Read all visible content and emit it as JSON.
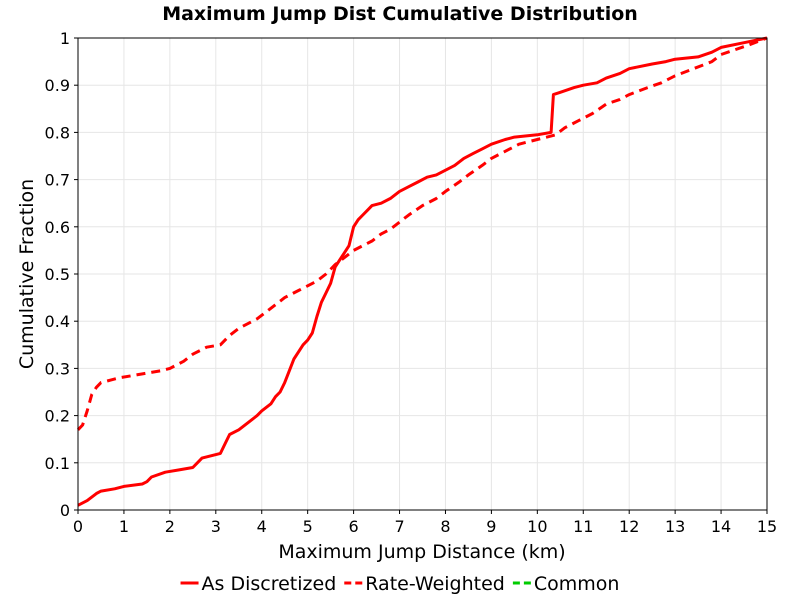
{
  "chart_data": {
    "type": "line",
    "title": "Maximum Jump Dist Cumulative Distribution",
    "xlabel": "Maximum Jump Distance (km)",
    "ylabel": "Cumulative Fraction",
    "xlim": [
      0,
      15
    ],
    "ylim": [
      0,
      1
    ],
    "x_ticks": [
      0,
      1,
      2,
      3,
      4,
      5,
      6,
      7,
      8,
      9,
      10,
      11,
      12,
      13,
      14,
      15
    ],
    "x_tick_labels": [
      "0",
      "1",
      "2",
      "3",
      "4",
      "5",
      "6",
      "7",
      "8",
      "9",
      "10",
      "11",
      "12",
      "13",
      "14",
      "15"
    ],
    "y_ticks": [
      0,
      0.1,
      0.2,
      0.3,
      0.4,
      0.5,
      0.6,
      0.7,
      0.8,
      0.9,
      1
    ],
    "y_tick_labels": [
      "0",
      "0.1",
      "0.2",
      "0.3",
      "0.4",
      "0.5",
      "0.6",
      "0.7",
      "0.8",
      "0.9",
      "1"
    ],
    "grid": true,
    "legend_position": "bottom",
    "series": [
      {
        "name": "As Discretized",
        "color": "#ff0000",
        "dash": "solid",
        "x": [
          0,
          0.2,
          0.4,
          0.5,
          0.8,
          1.0,
          1.4,
          1.5,
          1.6,
          1.9,
          2.2,
          2.5,
          2.6,
          2.7,
          3.1,
          3.2,
          3.3,
          3.5,
          3.7,
          3.9,
          4.0,
          4.2,
          4.3,
          4.4,
          4.5,
          4.6,
          4.7,
          4.8,
          4.9,
          5.0,
          5.1,
          5.2,
          5.3,
          5.4,
          5.5,
          5.6,
          5.7,
          5.8,
          5.9,
          6.0,
          6.1,
          6.2,
          6.3,
          6.4,
          6.6,
          6.8,
          7.0,
          7.2,
          7.4,
          7.6,
          7.8,
          8.0,
          8.2,
          8.4,
          8.6,
          8.8,
          9.0,
          9.3,
          9.5,
          10.0,
          10.3,
          10.35,
          10.5,
          10.8,
          11.0,
          11.3,
          11.5,
          11.8,
          12.0,
          12.5,
          12.8,
          13.0,
          13.5,
          13.8,
          14.0,
          14.5,
          15.0
        ],
        "y": [
          0.01,
          0.02,
          0.035,
          0.04,
          0.045,
          0.05,
          0.055,
          0.06,
          0.07,
          0.08,
          0.085,
          0.09,
          0.1,
          0.11,
          0.12,
          0.14,
          0.16,
          0.17,
          0.185,
          0.2,
          0.21,
          0.225,
          0.24,
          0.25,
          0.27,
          0.295,
          0.32,
          0.335,
          0.35,
          0.36,
          0.375,
          0.41,
          0.44,
          0.46,
          0.48,
          0.515,
          0.53,
          0.545,
          0.56,
          0.6,
          0.615,
          0.625,
          0.635,
          0.645,
          0.65,
          0.66,
          0.675,
          0.685,
          0.695,
          0.705,
          0.71,
          0.72,
          0.73,
          0.745,
          0.755,
          0.765,
          0.775,
          0.785,
          0.79,
          0.795,
          0.8,
          0.88,
          0.885,
          0.895,
          0.9,
          0.905,
          0.915,
          0.925,
          0.935,
          0.945,
          0.95,
          0.955,
          0.96,
          0.97,
          0.98,
          0.99,
          1.0
        ]
      },
      {
        "name": "Rate-Weighted",
        "color": "#ff0000",
        "dash": "dashed",
        "x": [
          0,
          0.1,
          0.2,
          0.3,
          0.4,
          0.5,
          0.7,
          0.9,
          1.2,
          1.5,
          1.8,
          2.0,
          2.3,
          2.5,
          2.8,
          3.1,
          3.3,
          3.5,
          3.7,
          3.9,
          4.1,
          4.3,
          4.5,
          4.8,
          5.0,
          5.2,
          5.4,
          5.6,
          5.8,
          6.0,
          6.2,
          6.4,
          6.6,
          6.8,
          7.0,
          7.2,
          7.5,
          7.8,
          8.0,
          8.3,
          8.5,
          8.8,
          9.0,
          9.3,
          9.6,
          10.0,
          10.4,
          10.6,
          10.9,
          11.2,
          11.5,
          11.8,
          12.0,
          12.4,
          12.7,
          13.0,
          13.4,
          13.8,
          14.0,
          14.3,
          14.6,
          15.0
        ],
        "y": [
          0.17,
          0.18,
          0.21,
          0.245,
          0.26,
          0.27,
          0.275,
          0.28,
          0.285,
          0.29,
          0.295,
          0.3,
          0.315,
          0.33,
          0.345,
          0.35,
          0.37,
          0.385,
          0.395,
          0.405,
          0.42,
          0.435,
          0.45,
          0.465,
          0.475,
          0.485,
          0.5,
          0.52,
          0.535,
          0.55,
          0.56,
          0.57,
          0.585,
          0.595,
          0.61,
          0.625,
          0.645,
          0.66,
          0.675,
          0.695,
          0.71,
          0.73,
          0.745,
          0.76,
          0.775,
          0.785,
          0.795,
          0.81,
          0.825,
          0.84,
          0.86,
          0.87,
          0.88,
          0.895,
          0.905,
          0.92,
          0.935,
          0.95,
          0.965,
          0.975,
          0.985,
          1.0
        ]
      },
      {
        "name": "Common",
        "color": "#00cc00",
        "dash": "dashed",
        "x": [],
        "y": []
      }
    ]
  }
}
